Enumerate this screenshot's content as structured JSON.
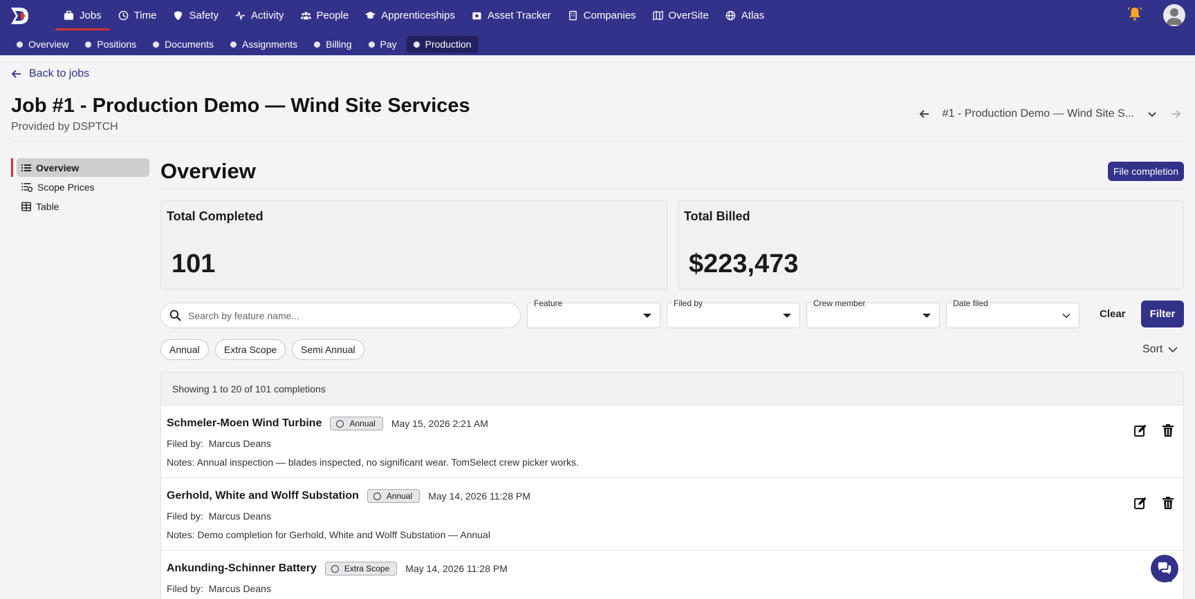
{
  "nav": {
    "items": [
      {
        "label": "Jobs",
        "icon": "briefcase-icon"
      },
      {
        "label": "Time",
        "icon": "clock-icon"
      },
      {
        "label": "Safety",
        "icon": "shield-icon"
      },
      {
        "label": "Activity",
        "icon": "pulse-icon"
      },
      {
        "label": "People",
        "icon": "people-icon"
      },
      {
        "label": "Apprenticeships",
        "icon": "graduation-cap-icon"
      },
      {
        "label": "Asset Tracker",
        "icon": "camera-box-icon"
      },
      {
        "label": "Companies",
        "icon": "building-icon"
      },
      {
        "label": "OverSite",
        "icon": "map-icon"
      },
      {
        "label": "Atlas",
        "icon": "globe-icon"
      }
    ],
    "active_index": 0,
    "sub_items": [
      "Overview",
      "Positions",
      "Documents",
      "Assignments",
      "Billing",
      "Pay",
      "Production"
    ],
    "sub_active_index": 6,
    "accent": "#33328a",
    "active_indicator": "#d32f2f"
  },
  "header": {
    "back_label": "Back to jobs",
    "title": "Job #1 - Production Demo — Wind Site Services",
    "subtitle": "Provided by DSPTCH",
    "job_switch_label": "#1 - Production Demo — Wind Site S..."
  },
  "sidebar": {
    "items": [
      {
        "label": "Overview",
        "icon": "list-icon"
      },
      {
        "label": "Scope Prices",
        "icon": "list-settings-icon"
      },
      {
        "label": "Table",
        "icon": "table-icon"
      }
    ]
  },
  "main": {
    "title": "Overview",
    "file_completion_label": "File completion",
    "cards": [
      {
        "title": "Total Completed",
        "value": "101"
      },
      {
        "title": "Total Billed",
        "value": "$223,473"
      }
    ],
    "search_placeholder": "Search by feature name...",
    "filters": [
      "Feature",
      "Filed by",
      "Crew member",
      "Date filed"
    ],
    "clear_label": "Clear",
    "filter_label": "Filter",
    "chips": [
      "Annual",
      "Extra Scope",
      "Semi Annual"
    ],
    "sort_label": "Sort",
    "showing": "Showing 1 to 20 of 101 completions",
    "filed_by_label": "Filed by:",
    "notes_label": "Notes:",
    "rows": [
      {
        "name": "Schmeler-Moen Wind Turbine",
        "badge": "Annual",
        "date": "May 15, 2026 2:21 AM",
        "filed_by": "Marcus Deans",
        "notes": "Annual inspection — blades inspected, no significant wear. TomSelect crew picker works."
      },
      {
        "name": "Gerhold, White and Wolff Substation",
        "badge": "Annual",
        "date": "May 14, 2026 11:28 PM",
        "filed_by": "Marcus Deans",
        "notes": "Demo completion for Gerhold, White and Wolff Substation — Annual"
      },
      {
        "name": "Ankunding-Schinner Battery",
        "badge": "Extra Scope",
        "date": "May 14, 2026 11:28 PM",
        "filed_by": "Marcus Deans",
        "notes": ""
      }
    ]
  }
}
